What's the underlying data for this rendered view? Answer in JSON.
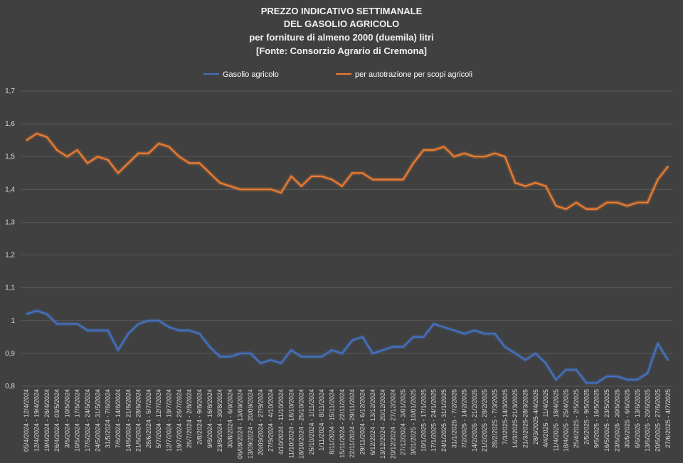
{
  "chart_data": {
    "type": "line",
    "title": [
      "PREZZO INDICATIVO SETTIMANALE",
      "DEL GASOLIO AGRICOLO",
      "per forniture di almeno 2000 (duemila) litri",
      "[Fonte: Consorzio Agrario di Cremona]"
    ],
    "ylim": [
      0.8,
      1.7
    ],
    "yticks": [
      "0,8",
      "0,9",
      "1",
      "1,1",
      "1,2",
      "1,3",
      "1,4",
      "1,5",
      "1,6",
      "1,7"
    ],
    "grid": true,
    "legend_position": "top",
    "categories": [
      "05/4/2024 - 12/4/2024",
      "12/4/2024 - 19/4/2024",
      "19/4/2024 - 26/4/2024",
      "26/4/2024 - 03/5/2024",
      "3/5/2024 - 10/5/2024",
      "10/5/2024 - 17/5/2024",
      "17/5/2024 - 24/5/2024",
      "24/5/2024 - 31/5/2024",
      "31/5/2024 - 7/6/2024",
      "7/6/2024 - 14/6/2024",
      "14/6/2024 - 21/6/2024",
      "21/6/2024 - 28/6/2024",
      "28/6/2024 - 5/7/2024",
      "5/7/2024 - 12/7/2024",
      "12/7/2024 - 19/7/2024",
      "19/7/2024 - 26/7/2024",
      "26/7/2024 - 2/8/2024",
      "2/8/2024 - 9/8/2024",
      "9/8/2024 - 16/8/2024",
      "23/8/2024 - 30/8/2024",
      "30/8/2024 - 6/9/2024",
      "06/09/2024 - 13/09/2024",
      "13/09/2024 - 20/09/2024",
      "20/09/2024 - 27/9/2024",
      "27/9/2024 - 4/10/2024",
      "4/10/2024 - 11/10/2024",
      "11/10/2024 - 18/10/2024",
      "18/10/2024 - 25/10/2024",
      "25/10/2024 - 1/11/2024",
      "1/11/2024 - 8/11/2024",
      "8/11/2024 - 15/11/2024",
      "15/11/2024 - 22/11/2024",
      "22/11/2024 - 29/11/2024",
      "29/11/2024 - 6/12/2024",
      "6/12/2024 - 13/12/2024",
      "13/12/2024 - 20/12/2024",
      "20/12/2024 - 27/12/2024",
      "27/12/2024 - 3/01/2025",
      "3/01/2025 - 10/01/2025",
      "10/1/2025 - 17/1/2025",
      "17/1/2025 - 24/1/2025",
      "24/1/2025 - 31/1/2025",
      "31/1/2025 - 7/2/2025",
      "7/2/2025 - 14/2/2025",
      "14/2/2025 - 21/2/2025",
      "21/2/2025 - 28/2/2025",
      "28/2/2025 - 7/3/2025",
      "7/3/2025-14/3/2025",
      "14/3/2025-21/3/2025",
      "21/3/2025-28/3/2025",
      "28/3/2025-4/4/2025",
      "4/4/2025 - 11/4/2025",
      "11/4/2025 - 18/4/2025",
      "18/4/2025 - 25/4/2025",
      "25/4/2025 - 2/5/2025",
      "2/5/2025 - 9/5/2025",
      "9/5/2025 - 16/5/2025",
      "16/5/2025 - 23/5/2025",
      "23/5/2025 - 30/5/2025",
      "30/5/2025 - 6/6/2025",
      "6/6/2025 - 13/6/2025",
      "13/6/2025 - 20/6/2025",
      "20/6/2025 - 27/6/2025",
      "27/6/2025 - 4/7/2025"
    ],
    "series": [
      {
        "name": "Gasolio agricolo",
        "color": "#4472c4",
        "values": [
          1.02,
          1.03,
          1.02,
          0.99,
          0.99,
          0.99,
          0.97,
          0.97,
          0.97,
          0.91,
          0.96,
          0.99,
          1.0,
          1.0,
          0.98,
          0.97,
          0.97,
          0.96,
          0.92,
          0.89,
          0.89,
          0.9,
          0.9,
          0.87,
          0.88,
          0.87,
          0.91,
          0.89,
          0.89,
          0.89,
          0.91,
          0.9,
          0.94,
          0.95,
          0.9,
          0.91,
          0.92,
          0.92,
          0.95,
          0.95,
          0.99,
          0.98,
          0.97,
          0.96,
          0.97,
          0.96,
          0.96,
          0.92,
          0.9,
          0.88,
          0.9,
          0.87,
          0.82,
          0.85,
          0.85,
          0.81,
          0.81,
          0.83,
          0.83,
          0.82,
          0.82,
          0.84,
          0.93,
          0.88
        ]
      },
      {
        "name": "per autotrazione per scopi agricoli",
        "color": "#ed7d31",
        "values": [
          1.55,
          1.57,
          1.56,
          1.52,
          1.5,
          1.52,
          1.48,
          1.5,
          1.49,
          1.45,
          1.48,
          1.51,
          1.51,
          1.54,
          1.53,
          1.5,
          1.48,
          1.48,
          1.45,
          1.42,
          1.41,
          1.4,
          1.4,
          1.4,
          1.4,
          1.39,
          1.44,
          1.41,
          1.44,
          1.44,
          1.43,
          1.41,
          1.45,
          1.45,
          1.43,
          1.43,
          1.43,
          1.43,
          1.48,
          1.52,
          1.52,
          1.53,
          1.5,
          1.51,
          1.5,
          1.5,
          1.51,
          1.5,
          1.42,
          1.41,
          1.42,
          1.41,
          1.35,
          1.34,
          1.36,
          1.34,
          1.34,
          1.36,
          1.36,
          1.35,
          1.36,
          1.36,
          1.43,
          1.47
        ]
      }
    ]
  }
}
